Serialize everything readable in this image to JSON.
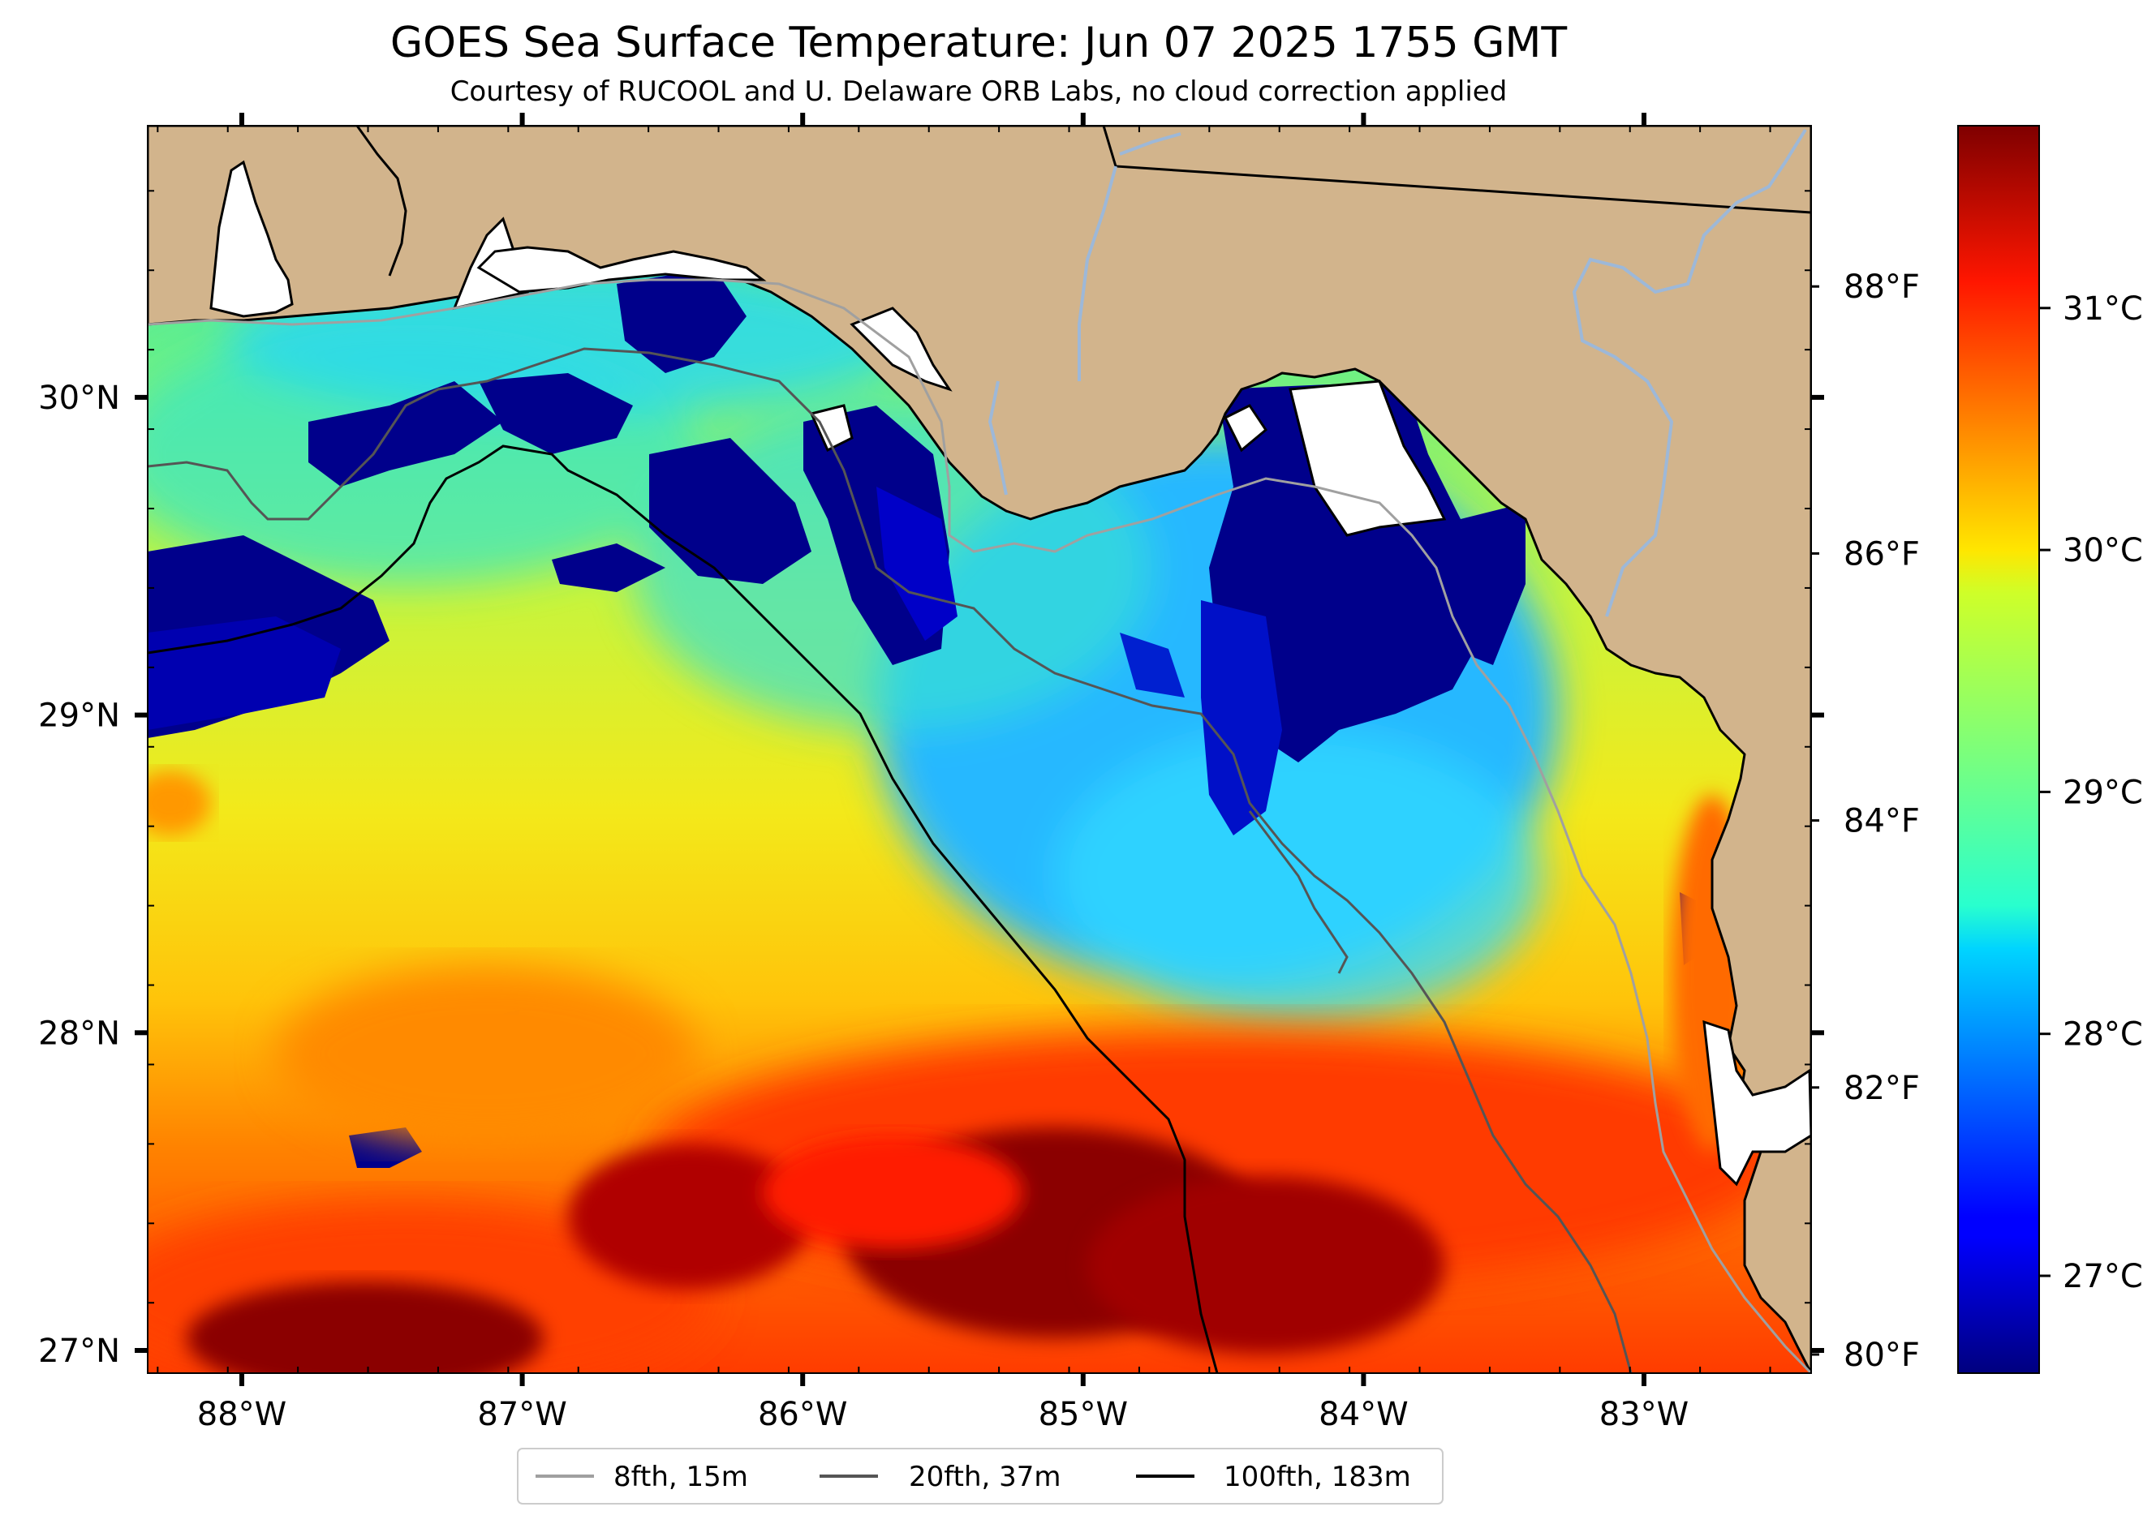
{
  "title": "GOES Sea Surface Temperature: Jun 07 2025 1755 GMT",
  "subtitle": "Courtesy of RUCOOL and U. Delaware ORB Labs, no cloud correction applied",
  "map": {
    "lon_ticks": [
      {
        "value": -88,
        "label": "88°W"
      },
      {
        "value": -87,
        "label": "87°W"
      },
      {
        "value": -86,
        "label": "86°W"
      },
      {
        "value": -85,
        "label": "85°W"
      },
      {
        "value": -84,
        "label": "84°W"
      },
      {
        "value": -83,
        "label": "83°W"
      }
    ],
    "lat_ticks": [
      {
        "value": 30,
        "label": "30°N"
      },
      {
        "value": 29,
        "label": "29°N"
      },
      {
        "value": 28,
        "label": "28°N"
      },
      {
        "value": 27,
        "label": "27°N"
      }
    ],
    "fahrenheit_ticks": [
      {
        "value": 88,
        "label": "88°F"
      },
      {
        "value": 86,
        "label": "86°F"
      },
      {
        "value": 84,
        "label": "84°F"
      },
      {
        "value": 82,
        "label": "82°F"
      },
      {
        "value": 80,
        "label": "80°F"
      }
    ]
  },
  "colorbar": {
    "colormap": "jet",
    "ticks": [
      {
        "value": 31,
        "label": "31°C"
      },
      {
        "value": 30,
        "label": "30°C"
      },
      {
        "value": 29,
        "label": "29°C"
      },
      {
        "value": 28,
        "label": "28°C"
      },
      {
        "value": 27,
        "label": "27°C"
      }
    ]
  },
  "legend": [
    {
      "label": "8fth, 15m",
      "color": "#a0a0a0"
    },
    {
      "label": "20fth, 37m",
      "color": "#555555"
    },
    {
      "label": "100fth, 183m",
      "color": "#000000"
    }
  ],
  "colors": {
    "land": "#d2b48c",
    "river": "#9db8d8",
    "cold": "#00008b",
    "warm": "#800000"
  }
}
